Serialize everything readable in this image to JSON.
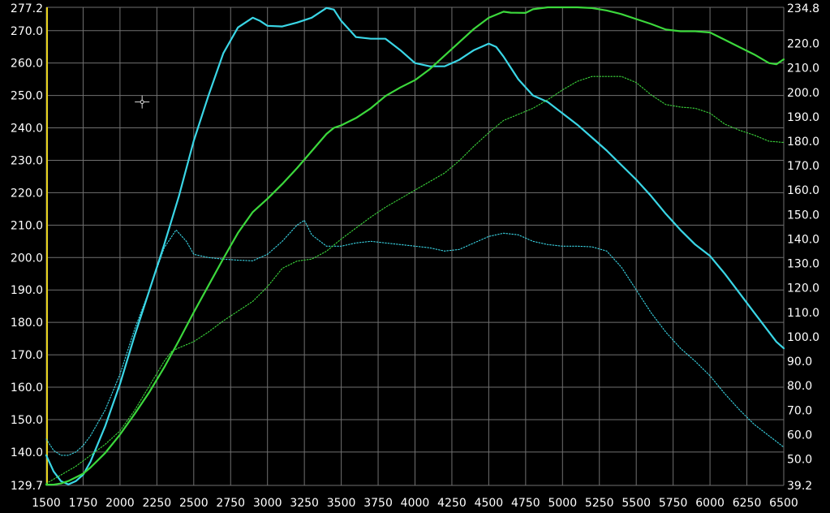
{
  "chart_data": {
    "type": "line",
    "title": "",
    "xlabel": "",
    "ylabel_left": "",
    "ylabel_right": "",
    "grid": true,
    "legend": "none",
    "xlim": [
      1500,
      6500
    ],
    "ylim_left": [
      129.7,
      277.2
    ],
    "ylim_right": [
      39.2,
      234.8
    ],
    "x_ticks": [
      "1500",
      "1750",
      "2000",
      "2250",
      "2500",
      "2750",
      "3000",
      "3250",
      "3500",
      "3750",
      "4000",
      "4250",
      "4500",
      "4750",
      "5000",
      "5250",
      "5500",
      "5750",
      "6000",
      "6250",
      "6500"
    ],
    "left_ticks": [
      "277.2",
      "270.0",
      "260.0",
      "250.0",
      "240.0",
      "230.0",
      "220.0",
      "210.0",
      "200.0",
      "190.0",
      "180.0",
      "170.0",
      "160.0",
      "150.0",
      "140.0",
      "129.7"
    ],
    "right_ticks": [
      "234.8",
      "220.0",
      "210.0",
      "200.0",
      "190.0",
      "180.0",
      "170.0",
      "160.0",
      "150.0",
      "140.0",
      "130.0",
      "120.0",
      "110.0",
      "100.0",
      "90.0",
      "80.0",
      "70.0",
      "60.0",
      "50.0",
      "39.2"
    ],
    "colors": {
      "background": "#000000",
      "grid": "#707070",
      "cursor_line": "#e8d21d",
      "cyan": "#3ad6e6",
      "green": "#3cd83c"
    },
    "series": [
      {
        "axis": "left",
        "style": "solid",
        "color": "#3ad6e6",
        "x": [
          1500,
          1550,
          1600,
          1650,
          1700,
          1750,
          1800,
          1900,
          2000,
          2100,
          2200,
          2300,
          2400,
          2500,
          2600,
          2700,
          2800,
          2900,
          2950,
          3000,
          3100,
          3200,
          3300,
          3400,
          3450,
          3500,
          3600,
          3700,
          3800,
          3900,
          4000,
          4100,
          4200,
          4300,
          4400,
          4500,
          4550,
          4600,
          4700,
          4800,
          4900,
          5000,
          5100,
          5200,
          5300,
          5400,
          5500,
          5600,
          5700,
          5800,
          5900,
          6000,
          6100,
          6200,
          6300,
          6400,
          6450,
          6500
        ],
        "values": [
          139,
          134,
          131,
          130,
          131,
          133,
          137,
          148,
          161,
          176,
          190,
          204,
          219,
          236,
          250,
          263,
          271,
          274,
          273,
          271.5,
          271.3,
          272.5,
          274,
          277,
          276.5,
          273,
          268,
          267.5,
          267.5,
          264,
          260,
          259,
          259,
          261,
          264,
          266,
          265,
          262,
          255,
          250,
          248,
          244.5,
          241,
          237,
          233,
          228.5,
          224,
          219,
          213.5,
          208.5,
          204,
          200.5,
          195,
          189,
          183,
          177,
          174,
          172
        ]
      },
      {
        "axis": "left",
        "style": "dotted",
        "color": "#3ad6e6",
        "x": [
          1500,
          1550,
          1600,
          1650,
          1700,
          1750,
          1800,
          1900,
          2000,
          2100,
          2200,
          2300,
          2380,
          2450,
          2500,
          2600,
          2700,
          2800,
          2900,
          3000,
          3100,
          3200,
          3250,
          3300,
          3400,
          3500,
          3600,
          3700,
          3800,
          3900,
          4000,
          4100,
          4200,
          4300,
          4400,
          4500,
          4600,
          4700,
          4800,
          4900,
          5000,
          5100,
          5200,
          5300,
          5400,
          5500,
          5600,
          5700,
          5800,
          5900,
          6000,
          6100,
          6200,
          6300,
          6400,
          6500
        ],
        "values": [
          144,
          140.5,
          139,
          139,
          140,
          142,
          145,
          153,
          164,
          178,
          190,
          203,
          208.5,
          205,
          201,
          200,
          199.5,
          199.2,
          199,
          201,
          205,
          210,
          211.5,
          207,
          203.5,
          203.5,
          204.5,
          205,
          204.5,
          204,
          203.5,
          203,
          202,
          202.5,
          204.5,
          206.5,
          207.5,
          207,
          205,
          204,
          203.5,
          203.5,
          203.3,
          202,
          197,
          190,
          183,
          177,
          172,
          168,
          163.5,
          158,
          153,
          148.5,
          145,
          141.5
        ]
      },
      {
        "axis": "right",
        "style": "solid",
        "color": "#3cd83c",
        "x": [
          1500,
          1550,
          1600,
          1650,
          1700,
          1750,
          1800,
          1900,
          2000,
          2100,
          2200,
          2300,
          2400,
          2500,
          2600,
          2700,
          2800,
          2900,
          3000,
          3100,
          3200,
          3300,
          3400,
          3450,
          3500,
          3600,
          3700,
          3800,
          3900,
          4000,
          4100,
          4200,
          4300,
          4400,
          4500,
          4600,
          4650,
          4750,
          4800,
          4900,
          5000,
          5100,
          5200,
          5300,
          5400,
          5500,
          5600,
          5700,
          5800,
          5900,
          6000,
          6100,
          6200,
          6300,
          6400,
          6450,
          6500
        ],
        "values": [
          39.5,
          39.5,
          40,
          41,
          42.5,
          44,
          46.5,
          52.5,
          60,
          68.5,
          77.5,
          87.5,
          98.5,
          110,
          121,
          132,
          142.5,
          151,
          156.5,
          162.5,
          169,
          176,
          183,
          185.5,
          186.5,
          189.5,
          193.5,
          198.5,
          202,
          205,
          209.5,
          215,
          220.5,
          226,
          230.5,
          233,
          232.6,
          232.5,
          234,
          234.8,
          234.8,
          234.8,
          234.5,
          233.5,
          232,
          230,
          228,
          225.7,
          225,
          225,
          224.5,
          221.5,
          218.5,
          215.5,
          212,
          211.5,
          213.5
        ]
      },
      {
        "axis": "right",
        "style": "dotted",
        "color": "#3cd83c",
        "x": [
          1500,
          1600,
          1700,
          1800,
          1900,
          2000,
          2100,
          2200,
          2300,
          2350,
          2400,
          2500,
          2600,
          2700,
          2800,
          2900,
          3000,
          3100,
          3200,
          3300,
          3400,
          3500,
          3600,
          3700,
          3800,
          3900,
          4000,
          4100,
          4200,
          4300,
          4400,
          4500,
          4600,
          4700,
          4800,
          4900,
          5000,
          5100,
          5200,
          5300,
          5400,
          5500,
          5600,
          5700,
          5800,
          5900,
          6000,
          6100,
          6200,
          6300,
          6400,
          6500
        ],
        "values": [
          40,
          43.5,
          47,
          51.5,
          56,
          61.5,
          70,
          80,
          90,
          94,
          95.5,
          98,
          102,
          106.5,
          110.5,
          114.5,
          120.5,
          128,
          131,
          131.8,
          135,
          140,
          144.5,
          149,
          153,
          156.5,
          160,
          163.5,
          167,
          172,
          178,
          183.5,
          188.5,
          191,
          193.5,
          197,
          201,
          204.5,
          206.5,
          206.5,
          206.5,
          204,
          199,
          195,
          194,
          193.5,
          191.5,
          187,
          184.5,
          182.5,
          180,
          179.5
        ]
      }
    ]
  },
  "cursor": {
    "x": 2150,
    "y": 248.0
  }
}
